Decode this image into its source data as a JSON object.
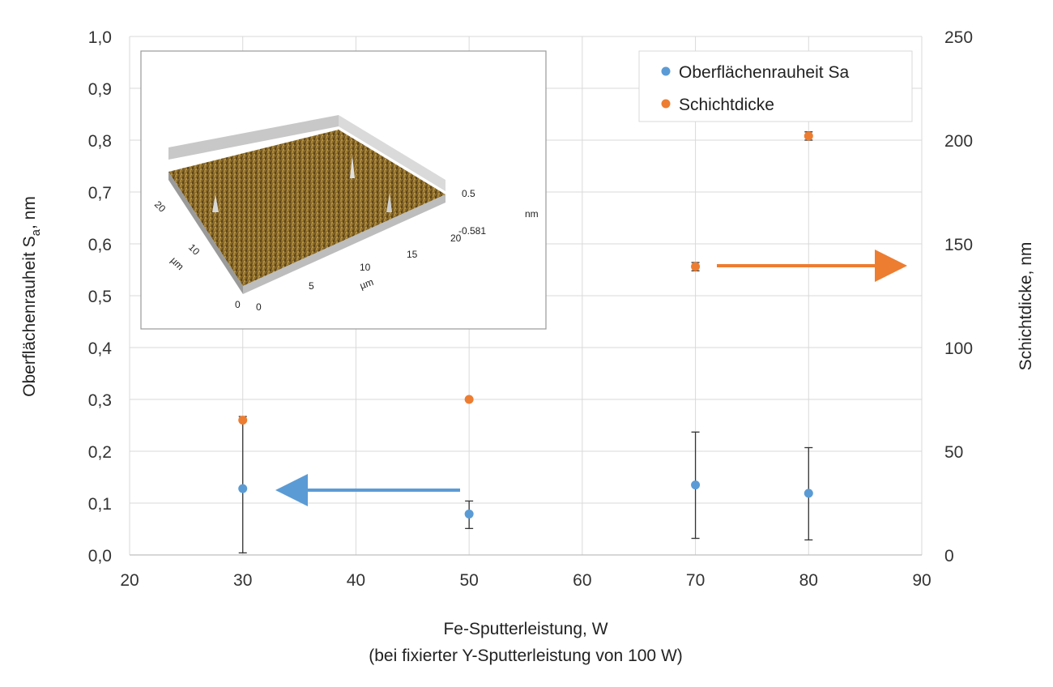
{
  "chart_data": {
    "type": "scatter",
    "xlabel_lines": [
      "Fe-Sputterleistung, W",
      "(bei fixierter Y-Sputterleistung von 100 W)"
    ],
    "ylabel_main": "Oberflächenrauheit S",
    "ylabel_sub": "a",
    "ylabel_suffix": ", nm",
    "y2label": "Schichtdicke, nm",
    "xlim": [
      20,
      90
    ],
    "x_ticks": [
      "20",
      "30",
      "40",
      "50",
      "60",
      "70",
      "80",
      "90"
    ],
    "ylim": [
      0,
      1.0
    ],
    "y_ticks": [
      "0,0",
      "0,1",
      "0,2",
      "0,3",
      "0,4",
      "0,5",
      "0,6",
      "0,7",
      "0,8",
      "0,9",
      "1,0"
    ],
    "y2lim": [
      0,
      250
    ],
    "y2_ticks": [
      "0",
      "50",
      "100",
      "150",
      "200",
      "250"
    ],
    "grid": true,
    "legend_position": "top-right",
    "series": [
      {
        "name": "Oberflächenrauheit Sa",
        "axis": "left",
        "color": "#5b9bd5",
        "x": [
          30,
          50,
          70,
          80
        ],
        "y": [
          0.128,
          0.079,
          0.135,
          0.119
        ],
        "err_low": [
          0.004,
          0.051,
          0.032,
          0.029
        ],
        "err_high": [
          0.267,
          0.104,
          0.237,
          0.207
        ]
      },
      {
        "name": "Schichtdicke",
        "axis": "right",
        "color": "#ed7d31",
        "x": [
          30,
          50,
          70,
          80
        ],
        "y": [
          65,
          75,
          139,
          202
        ],
        "err_low": [
          null,
          null,
          137,
          200
        ],
        "err_high": [
          null,
          null,
          141,
          204
        ]
      }
    ],
    "arrows": [
      {
        "series": "Oberflächenrauheit Sa",
        "direction": "left",
        "color": "#5b9bd5"
      },
      {
        "series": "Schichtdicke",
        "direction": "right",
        "color": "#ed7d31"
      }
    ],
    "inset": {
      "description_icon": "afm-3d-surface-image",
      "y_axis_label": "µm",
      "x_axis_label": "µm",
      "z_axis_label": "nm",
      "y_ticks": [
        "0",
        "10",
        "20"
      ],
      "x_ticks": [
        "0",
        "5",
        "10",
        "15",
        "20"
      ],
      "z_ticks": [
        "0.5",
        "-0.581"
      ]
    }
  }
}
